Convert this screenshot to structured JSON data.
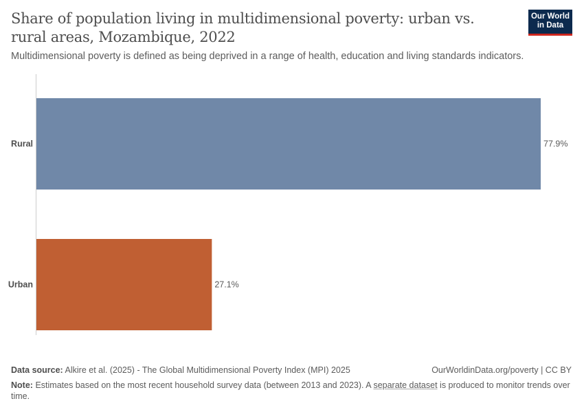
{
  "header": {
    "title": "Share of population living in multidimensional poverty: urban vs. rural areas, Mozambique, 2022",
    "subtitle": "Multidimensional poverty is defined as being deprived in a range of health, education and living standards indicators.",
    "logo": "Our World in Data"
  },
  "chart_data": {
    "type": "bar",
    "orientation": "horizontal",
    "categories": [
      "Rural",
      "Urban"
    ],
    "values": [
      77.9,
      27.1
    ],
    "data_labels": [
      "77.9%",
      "27.1%"
    ],
    "colors": [
      "#7088a8",
      "#c05f33"
    ],
    "unit": "%",
    "xlim": [
      0,
      77.9
    ],
    "grid": false
  },
  "footer": {
    "source_label": "Data source:",
    "source_text": "Alkire et al. (2025) - The Global Multidimensional Poverty Index (MPI) 2025",
    "url": "OurWorldinData.org/poverty | CC BY",
    "note_label": "Note:",
    "note_text_1": "Estimates based on the most recent household survey data (between 2013 and 2023). A ",
    "note_link": "separate dataset",
    "note_text_2": " is produced to monitor trends over time."
  }
}
